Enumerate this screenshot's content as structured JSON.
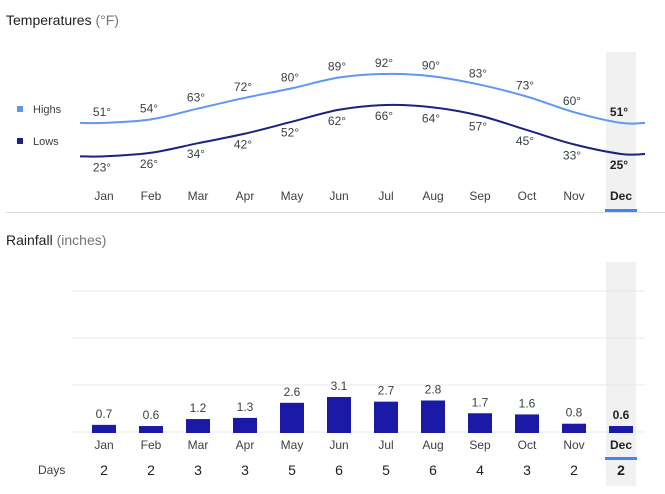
{
  "temperatures": {
    "title": "Temperatures",
    "unit": "(°F)",
    "legend": {
      "highs": "Highs",
      "lows": "Lows"
    }
  },
  "rainfall": {
    "title": "Rainfall",
    "unit": "(inches)",
    "days_label": "Days"
  },
  "selected_month": "Dec",
  "colors": {
    "highs": "#5e97f6",
    "lows": "#1a237e",
    "bars": "#1a1aa6",
    "selection": "#4285f4",
    "selection_bg": "#f1f1f1"
  },
  "chart_data": [
    {
      "type": "line",
      "title": "Temperatures (°F)",
      "categories": [
        "Jan",
        "Feb",
        "Mar",
        "Apr",
        "May",
        "Jun",
        "Jul",
        "Aug",
        "Sep",
        "Oct",
        "Nov",
        "Dec"
      ],
      "series": [
        {
          "name": "Highs",
          "values": [
            51,
            54,
            63,
            72,
            80,
            89,
            92,
            90,
            83,
            73,
            60,
            51
          ],
          "labels": [
            "51°",
            "54°",
            "63°",
            "72°",
            "80°",
            "89°",
            "92°",
            "90°",
            "83°",
            "73°",
            "60°",
            "51°"
          ]
        },
        {
          "name": "Lows",
          "values": [
            23,
            26,
            34,
            42,
            52,
            62,
            66,
            64,
            57,
            45,
            33,
            25
          ],
          "labels": [
            "23°",
            "26°",
            "34°",
            "42°",
            "52°",
            "62°",
            "66°",
            "64°",
            "57°",
            "45°",
            "33°",
            "25°"
          ]
        }
      ],
      "legend": "left"
    },
    {
      "type": "bar",
      "title": "Rainfall (inches)",
      "categories": [
        "Jan",
        "Feb",
        "Mar",
        "Apr",
        "May",
        "Jun",
        "Jul",
        "Aug",
        "Sep",
        "Oct",
        "Nov",
        "Dec"
      ],
      "values": [
        0.7,
        0.6,
        1.2,
        1.3,
        2.6,
        3.1,
        2.7,
        2.8,
        1.7,
        1.6,
        0.8,
        0.6
      ],
      "labels": [
        "0.7",
        "0.6",
        "1.2",
        "1.3",
        "2.6",
        "3.1",
        "2.7",
        "2.8",
        "1.7",
        "1.6",
        "0.8",
        "0.6"
      ],
      "days": [
        "2",
        "2",
        "3",
        "3",
        "5",
        "6",
        "5",
        "6",
        "4",
        "3",
        "2",
        "2"
      ],
      "grid": true
    }
  ]
}
